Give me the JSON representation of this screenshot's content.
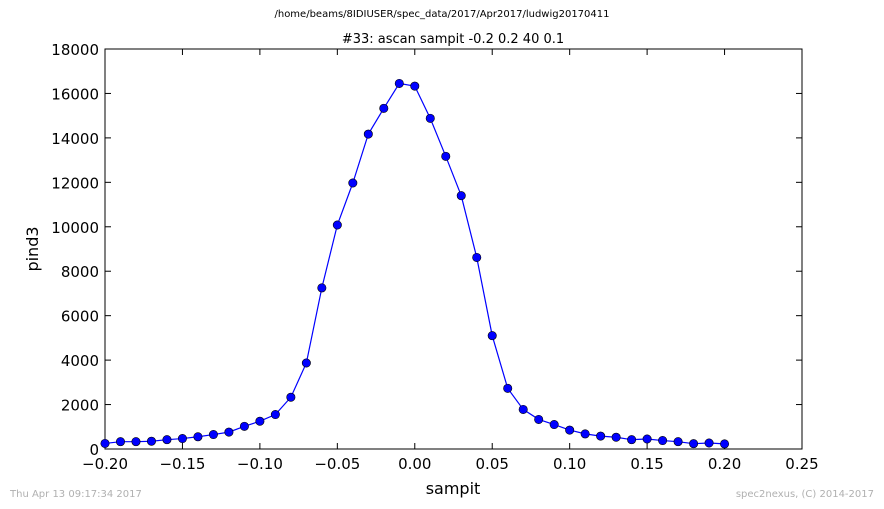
{
  "suptitle": "/home/beams/8IDIUSER/spec_data/2017/Apr2017/ludwig20170411",
  "footer": {
    "timestamp": "Thu Apr 13 09:17:34 2017",
    "credit": "spec2nexus, (C) 2014-2017"
  },
  "colors": {
    "series": "#0000ff",
    "axes": "#000000",
    "footer": "#b0b0b0"
  },
  "chart_data": {
    "type": "line",
    "title": "#33: ascan  sampit -0.2 0.2  40 0.1",
    "xlabel": "sampit",
    "ylabel": "pind3",
    "xlim": [
      -0.2,
      0.25
    ],
    "ylim": [
      0,
      18000
    ],
    "xticks": [
      -0.2,
      -0.15,
      -0.1,
      -0.05,
      0.0,
      0.05,
      0.1,
      0.15,
      0.2,
      0.25
    ],
    "xtick_labels": [
      "−0.20",
      "−0.15",
      "−0.10",
      "−0.05",
      "0.00",
      "0.05",
      "0.10",
      "0.15",
      "0.20",
      "0.25"
    ],
    "yticks": [
      0,
      2000,
      4000,
      6000,
      8000,
      10000,
      12000,
      14000,
      16000,
      18000
    ],
    "ytick_labels": [
      "0",
      "2000",
      "4000",
      "6000",
      "8000",
      "10000",
      "12000",
      "14000",
      "16000",
      "18000"
    ],
    "grid": false,
    "series": [
      {
        "marker": "circle",
        "x": [
          -0.2,
          -0.19,
          -0.18,
          -0.17,
          -0.16,
          -0.15,
          -0.14,
          -0.13,
          -0.12,
          -0.11,
          -0.1,
          -0.09,
          -0.08,
          -0.07,
          -0.06,
          -0.05,
          -0.04,
          -0.03,
          -0.02,
          -0.01,
          0.0,
          0.01,
          0.02,
          0.03,
          0.04,
          0.05,
          0.06,
          0.07,
          0.08,
          0.09,
          0.1,
          0.11,
          0.12,
          0.13,
          0.14,
          0.15,
          0.16,
          0.17,
          0.18,
          0.19,
          0.2
        ],
        "y": [
          250,
          330,
          330,
          350,
          420,
          470,
          550,
          650,
          760,
          1020,
          1250,
          1550,
          2330,
          3870,
          7250,
          10080,
          11970,
          14170,
          15330,
          16450,
          16330,
          14880,
          13170,
          11400,
          8620,
          5100,
          2730,
          1780,
          1330,
          1100,
          850,
          680,
          580,
          530,
          420,
          450,
          380,
          330,
          240,
          270,
          230
        ]
      }
    ]
  }
}
